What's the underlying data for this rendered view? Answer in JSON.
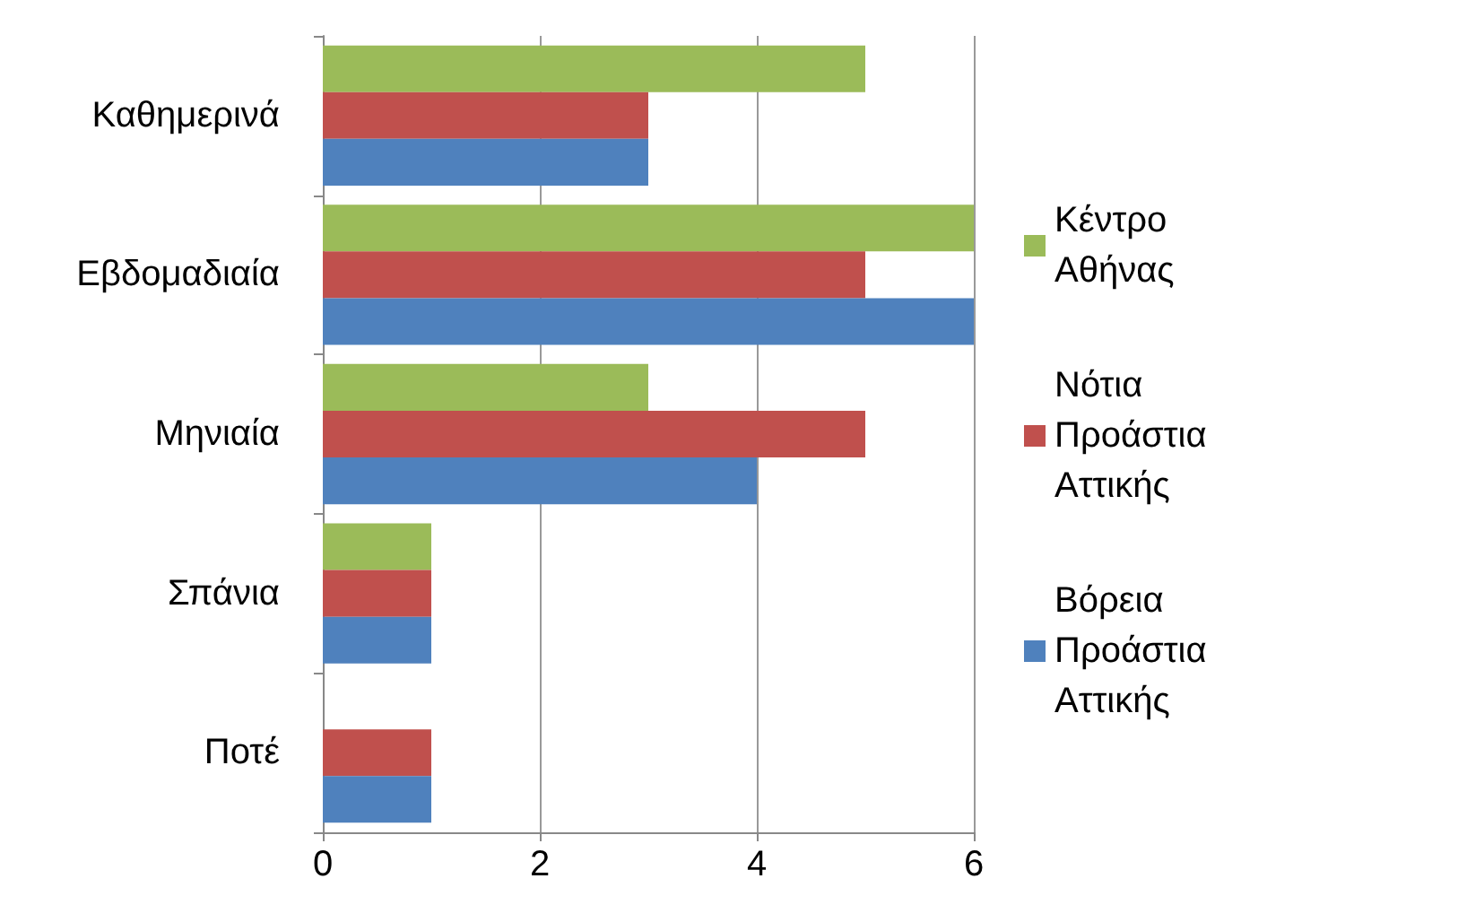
{
  "chart_data": {
    "type": "bar",
    "orientation": "horizontal",
    "categories": [
      "Καθημερινά",
      "Εβδομαδιαία",
      "Μηνιαία",
      "Σπάνια",
      "Ποτέ"
    ],
    "series": [
      {
        "name": "Κέντρο Αθήνας",
        "color": "#9bbb59",
        "values": [
          5,
          6,
          3,
          1,
          0
        ]
      },
      {
        "name": "Νότια Προάστια Αττικής",
        "color": "#c0504d",
        "values": [
          3,
          5,
          5,
          1,
          1
        ]
      },
      {
        "name": "Βόρεια Προάστια Αττικής",
        "color": "#4f81bd",
        "values": [
          3,
          6,
          4,
          1,
          1
        ]
      }
    ],
    "xlim": [
      0,
      6
    ],
    "xticks": [
      0,
      2,
      4,
      6
    ],
    "grid": "x",
    "legend": "right"
  }
}
